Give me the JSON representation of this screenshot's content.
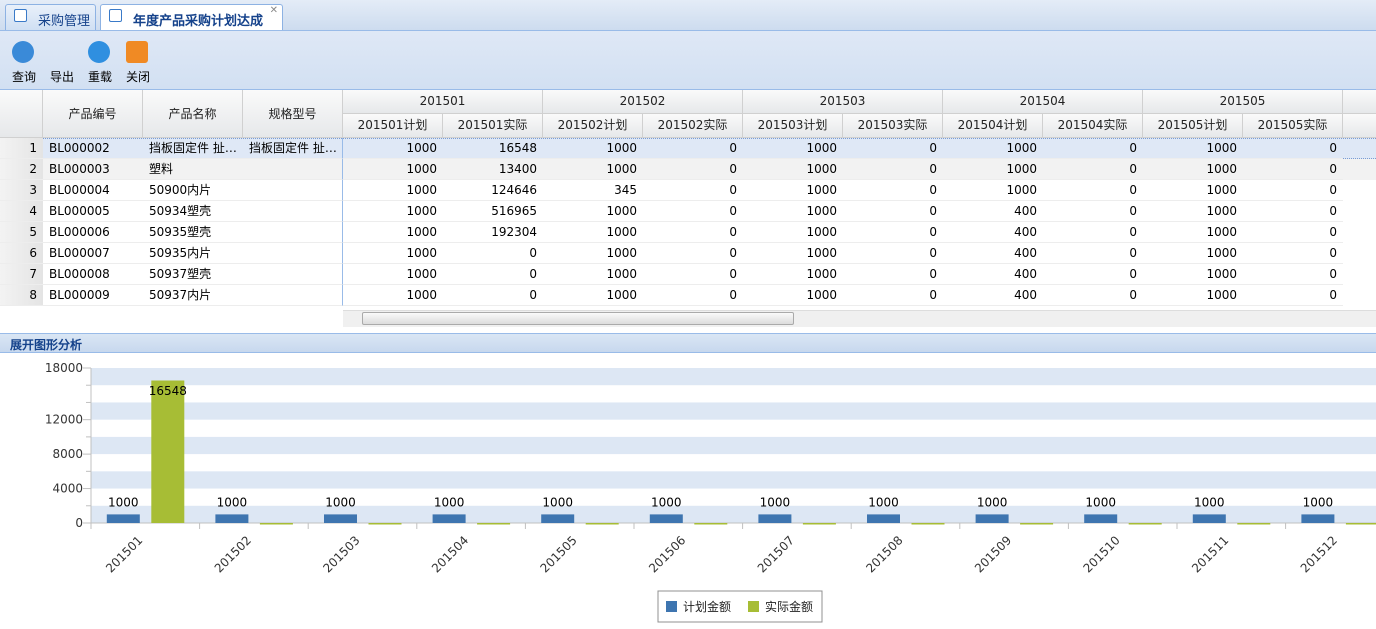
{
  "tabs": [
    "采购管理",
    "年度产品采购计划达成"
  ],
  "toolbar": [
    "查询",
    "导出",
    "重载",
    "关闭"
  ],
  "table": {
    "fixed_headers": [
      "产品编号",
      "产品名称",
      "规格型号"
    ],
    "groups": [
      {
        "name": "201501",
        "columns": [
          "201501计划",
          "201501实际"
        ]
      },
      {
        "name": "201502",
        "columns": [
          "201502计划",
          "201502实际"
        ]
      },
      {
        "name": "201503",
        "columns": [
          "201503计划",
          "201503实际"
        ]
      },
      {
        "name": "201504",
        "columns": [
          "201504计划",
          "201504实际"
        ]
      },
      {
        "name": "201505",
        "columns": [
          "201505计划",
          "201505实际"
        ]
      }
    ],
    "rows": [
      [
        "1",
        "BL000002",
        "挡板固定件 扯…",
        "挡板固定件 扯…",
        1000,
        16548,
        1000,
        0,
        1000,
        0,
        1000,
        0,
        1000,
        0
      ],
      [
        "2",
        "BL000003",
        "塑料",
        null,
        1000,
        13400,
        1000,
        0,
        1000,
        0,
        1000,
        0,
        1000,
        0
      ],
      [
        "3",
        "BL000004",
        "50900内片",
        null,
        1000,
        124646,
        345,
        0,
        1000,
        0,
        1000,
        0,
        1000,
        0
      ],
      [
        "4",
        "BL000005",
        "50934塑壳",
        null,
        1000,
        516965,
        1000,
        0,
        1000,
        0,
        400,
        0,
        1000,
        0
      ],
      [
        "5",
        "BL000006",
        "50935塑壳",
        null,
        1000,
        192304,
        1000,
        0,
        1000,
        0,
        400,
        0,
        1000,
        0
      ],
      [
        "6",
        "BL000007",
        "50935内片",
        null,
        1000,
        0,
        1000,
        0,
        1000,
        0,
        400,
        0,
        1000,
        0
      ],
      [
        "7",
        "BL000008",
        "50937塑壳",
        null,
        1000,
        0,
        1000,
        0,
        1000,
        0,
        400,
        0,
        1000,
        0
      ],
      [
        "8",
        "BL000009",
        "50937内片",
        null,
        1000,
        0,
        1000,
        0,
        1000,
        0,
        400,
        0,
        1000,
        0
      ]
    ]
  },
  "section_title": "展开图形分析",
  "chart_data": {
    "type": "bar",
    "categories": [
      "201501",
      "201502",
      "201503",
      "201504",
      "201505",
      "201506",
      "201507",
      "201508",
      "201509",
      "201510",
      "201511",
      "201512"
    ],
    "series": [
      {
        "name": "计划金额",
        "color": "#3e75b0",
        "values": [
          1000,
          1000,
          1000,
          1000,
          1000,
          1000,
          1000,
          1000,
          1000,
          1000,
          1000,
          1000
        ]
      },
      {
        "name": "实际金额",
        "color": "#a7bd35",
        "values": [
          16548,
          0,
          0,
          0,
          0,
          0,
          0,
          0,
          0,
          0,
          0,
          0
        ]
      }
    ],
    "ylim": [
      0,
      18000
    ],
    "yticks": [
      0,
      4000,
      8000,
      12000,
      18000
    ],
    "yminorticks": [
      2000,
      6000,
      10000,
      14000,
      16000
    ],
    "grid": true,
    "legend": "bottom"
  }
}
